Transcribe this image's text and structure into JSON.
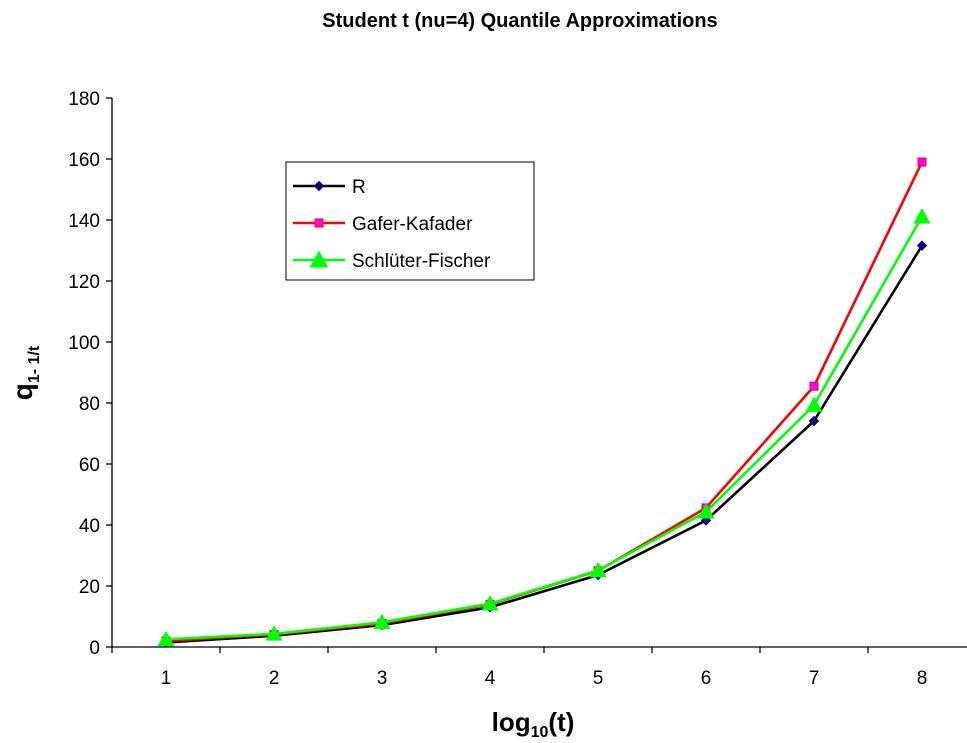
{
  "chart_data": {
    "type": "line",
    "title": "Student t (nu=4) Quantile Approximations",
    "xlabel": {
      "main": "log",
      "sub": "10",
      "suffix": "(t)"
    },
    "ylabel": {
      "main": "q",
      "sub": "1- 1/t"
    },
    "categories": [
      "1",
      "2",
      "3",
      "4",
      "5",
      "6",
      "7",
      "8"
    ],
    "x": [
      1,
      2,
      3,
      4,
      5,
      6,
      7,
      8
    ],
    "ylim": [
      0,
      180
    ],
    "yticks": [
      "0",
      "20",
      "40",
      "60",
      "80",
      "100",
      "120",
      "140",
      "160",
      "180"
    ],
    "grid": false,
    "legend_position": "upper-left inside",
    "series": [
      {
        "name": "R",
        "color": "#000000",
        "marker_color": "#000080",
        "marker": "diamond",
        "values": [
          1.5,
          3.7,
          7.2,
          13.0,
          23.6,
          41.5,
          74.1,
          131.6
        ]
      },
      {
        "name": "Gafer-Kafader",
        "color": "#ff0000",
        "marker_color": "#ff00ff",
        "marker": "square",
        "values": [
          2.0,
          4.1,
          7.7,
          14.0,
          25.0,
          45.6,
          85.5,
          159.0
        ]
      },
      {
        "name": "Schlüter-Fischer",
        "color": "#00ff00",
        "marker_color": "#00ff00",
        "marker": "triangle",
        "values": [
          2.5,
          4.3,
          8.1,
          14.2,
          25.1,
          44.3,
          79.3,
          141.1
        ]
      }
    ]
  }
}
